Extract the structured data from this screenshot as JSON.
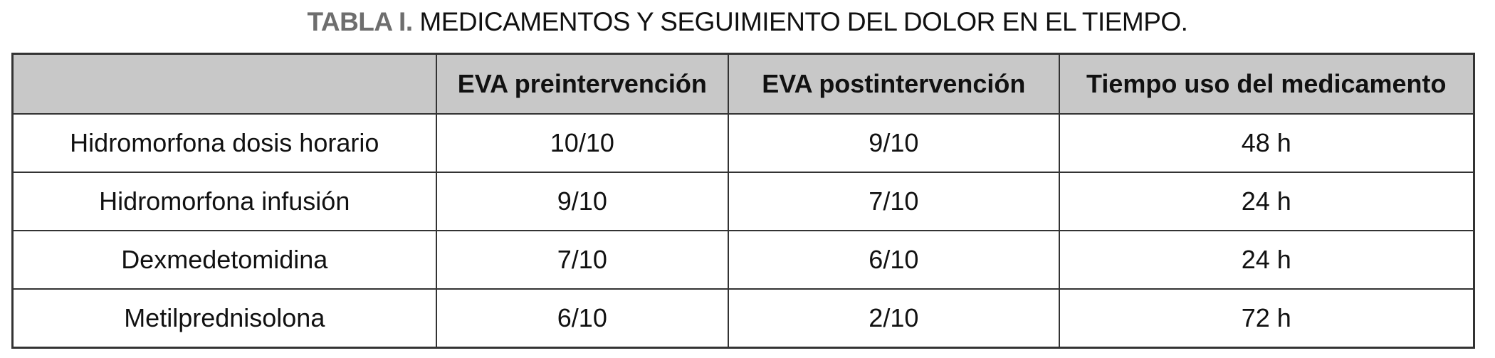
{
  "title": {
    "label": "TABLA I.",
    "text": "MEDICAMENTOS Y SEGUIMIENTO DEL DOLOR EN EL TIEMPO."
  },
  "table": {
    "headers": [
      "",
      "EVA preintervención",
      "EVA postintervención",
      "Tiempo uso del medicamento"
    ],
    "rows": [
      [
        "Hidromorfona dosis horario",
        "10/10",
        "9/10",
        "48 h"
      ],
      [
        "Hidromorfona infusión",
        "9/10",
        "7/10",
        "24 h"
      ],
      [
        "Dexmedetomidina",
        "7/10",
        "6/10",
        "24 h"
      ],
      [
        "Metilprednisolona",
        "6/10",
        "2/10",
        "72 h"
      ]
    ]
  },
  "colors": {
    "header_bg": "#c8c8c8",
    "title_label": "#6e6e6e"
  }
}
